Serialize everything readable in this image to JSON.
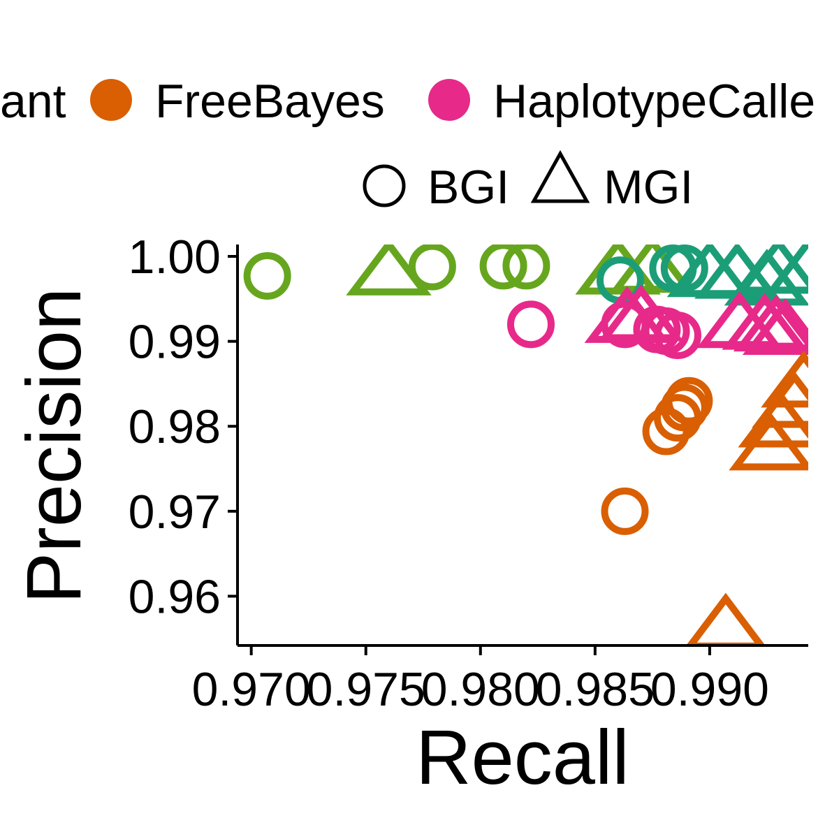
{
  "chart_data": {
    "type": "scatter",
    "xlabel": "Recall",
    "ylabel": "Precision",
    "xlim": [
      0.9694,
      0.9943
    ],
    "ylim": [
      0.9542,
      1.0014
    ],
    "x_ticks": [
      0.97,
      0.975,
      0.98,
      0.985,
      0.99
    ],
    "x_tick_labels": [
      "0.970",
      "0.975",
      "0.980",
      "0.985",
      "0.990"
    ],
    "y_ticks": [
      0.96,
      0.97,
      0.98,
      0.99,
      1.0
    ],
    "y_tick_labels": [
      "0.96",
      "0.97",
      "0.98",
      "0.99",
      "1.00"
    ],
    "grid": false,
    "legend_position": "top",
    "color_legend": [
      {
        "name": "DeepVariant",
        "color": "#1b9e77",
        "visible_text": "ant"
      },
      {
        "name": "FreeBayes",
        "color": "#d95f02",
        "visible_text": "FreeBayes"
      },
      {
        "name": "HaplotypeCaller",
        "color": "#e7298a",
        "visible_text": "HaplotypeCalle"
      }
    ],
    "shape_legend": [
      {
        "name": "BGI",
        "shape": "circle"
      },
      {
        "name": "MGI",
        "shape": "triangle"
      }
    ],
    "series": [
      {
        "color": "#66a61e",
        "shape": "circle",
        "x": [
          0.9707,
          0.9779,
          0.981,
          0.982
        ],
        "y": [
          0.9977,
          0.9988,
          0.9989,
          0.9989
        ]
      },
      {
        "color": "#66a61e",
        "shape": "triangle",
        "x": [
          0.976,
          0.986,
          0.9875
        ],
        "y": [
          0.9982,
          0.9983,
          0.9985
        ]
      },
      {
        "color": "#1b9e77",
        "shape": "circle",
        "x": [
          0.9861,
          0.9884,
          0.9889
        ],
        "y": [
          0.9972,
          0.9986,
          0.9986
        ]
      },
      {
        "color": "#1b9e77",
        "shape": "triangle",
        "x": [
          0.99,
          0.9912,
          0.9925,
          0.993,
          0.9943
        ],
        "y": [
          0.998,
          0.9978,
          0.997,
          0.9984,
          0.9984
        ]
      },
      {
        "color": "#e7298a",
        "shape": "circle",
        "x": [
          0.9822,
          0.9863,
          0.9877,
          0.9881,
          0.9886
        ],
        "y": [
          0.992,
          0.992,
          0.9914,
          0.9912,
          0.9907
        ]
      },
      {
        "color": "#e7298a",
        "shape": "triangle",
        "x": [
          0.9864,
          0.987,
          0.9913,
          0.9924,
          0.9929,
          0.9933
        ],
        "y": [
          0.9926,
          0.9928,
          0.992,
          0.9918,
          0.9916,
          0.9912
        ]
      },
      {
        "color": "#d95f02",
        "shape": "circle",
        "x": [
          0.9863,
          0.9881,
          0.9886,
          0.9889,
          0.9891
        ],
        "y": [
          0.97,
          0.9794,
          0.981,
          0.9822,
          0.983
        ]
      },
      {
        "color": "#d95f02",
        "shape": "triangle",
        "x": [
          0.9907,
          0.9927,
          0.9931,
          0.9937,
          0.9941
        ],
        "y": [
          0.9565,
          0.9776,
          0.9803,
          0.9826,
          0.985
        ]
      }
    ]
  }
}
